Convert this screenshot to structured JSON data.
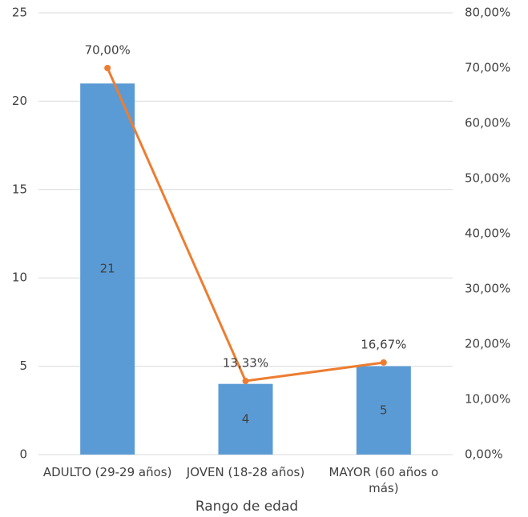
{
  "chart_data": {
    "type": "combo",
    "categories": [
      "ADULTO (29-29 años)",
      "JOVEN (18-28 años)",
      "MAYOR (60 años o más)"
    ],
    "x_label": "Rango de edad",
    "series": [
      {
        "type": "bar",
        "color": "#5b9bd5",
        "values": [
          21,
          4,
          5
        ]
      },
      {
        "type": "line",
        "axis": "y2",
        "color": "#ed7d31",
        "values": [
          70,
          13.33,
          16.67
        ],
        "value_labels": [
          "70,00%",
          "13,33%",
          "16,67%"
        ]
      }
    ],
    "ylim": [
      0,
      25
    ],
    "yticks": [
      0,
      5,
      10,
      15,
      20,
      25
    ],
    "y2lim": [
      0,
      80
    ],
    "y2ticks": [
      {
        "value": 0,
        "label": "0,00%"
      },
      {
        "value": 10,
        "label": "10,00%"
      },
      {
        "value": 20,
        "label": "20,00%"
      },
      {
        "value": 30,
        "label": "30,00%"
      },
      {
        "value": 40,
        "label": "40,00%"
      },
      {
        "value": 50,
        "label": "50,00%"
      },
      {
        "value": 60,
        "label": "60,00%"
      },
      {
        "value": 70,
        "label": "70,00%"
      },
      {
        "value": 80,
        "label": "80,00%"
      }
    ],
    "grid": true
  }
}
